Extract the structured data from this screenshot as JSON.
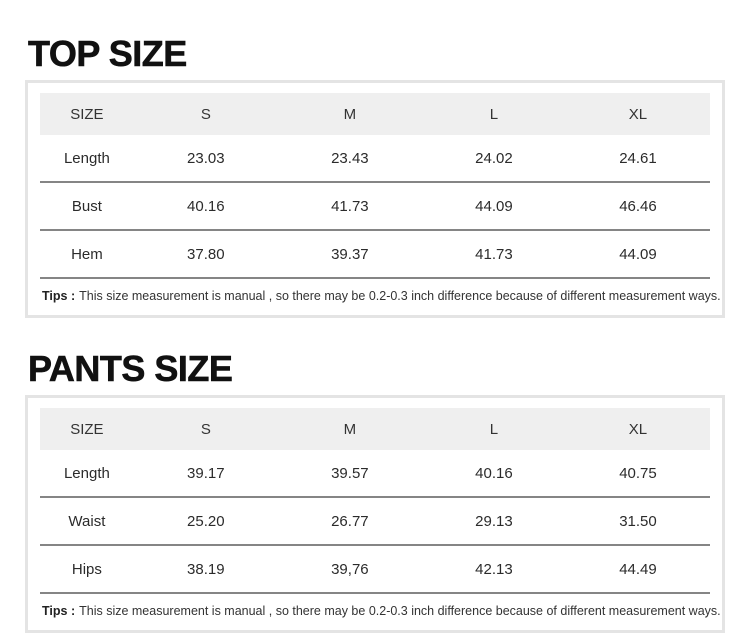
{
  "colors": {
    "page_background": "#ffffff",
    "card_border": "#e4e4e4",
    "header_row_background": "#efefef",
    "row_separator": "#858585",
    "title_text": "#111111",
    "body_text": "#2b2b2b"
  },
  "sections": [
    {
      "title": "TOP SIZE",
      "table": {
        "header": [
          "SIZE",
          "S",
          "M",
          "L",
          "XL"
        ],
        "rows": [
          {
            "label": "Length",
            "values": [
              "23.03",
              "23.43",
              "24.02",
              "24.61"
            ]
          },
          {
            "label": "Bust",
            "values": [
              "40.16",
              "41.73",
              "44.09",
              "46.46"
            ]
          },
          {
            "label": "Hem",
            "values": [
              "37.80",
              "39.37",
              "41.73",
              "44.09"
            ]
          }
        ]
      },
      "tips_label": "Tips :",
      "tips_text": "This size measurement is manual , so there may be 0.2-0.3 inch difference because of different measurement ways."
    },
    {
      "title": "PANTS SIZE",
      "table": {
        "header": [
          "SIZE",
          "S",
          "M",
          "L",
          "XL"
        ],
        "rows": [
          {
            "label": "Length",
            "values": [
              "39.17",
              "39.57",
              "40.16",
              "40.75"
            ]
          },
          {
            "label": "Waist",
            "values": [
              "25.20",
              "26.77",
              "29.13",
              "31.50"
            ]
          },
          {
            "label": "Hips",
            "values": [
              "38.19",
              "39,76",
              "42.13",
              "44.49"
            ]
          }
        ]
      },
      "tips_label": "Tips :",
      "tips_text": "This size measurement is manual , so there may be 0.2-0.3 inch difference because of different measurement ways."
    }
  ]
}
